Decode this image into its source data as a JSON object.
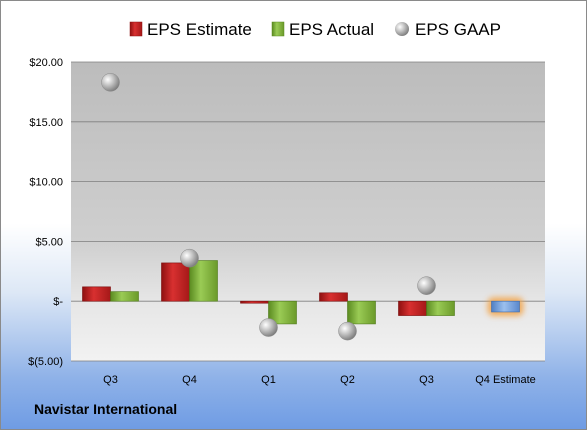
{
  "footer": {
    "company": "Navistar International"
  },
  "colors": {
    "estimate": "#d42a2a",
    "actual": "#7fb23a",
    "gaap": "#b8b8b8",
    "future_estimate": "#6f9bd8",
    "future_glow": "#f3a44a"
  },
  "chart_data": {
    "type": "bar",
    "categories": [
      "Q3",
      "Q4",
      "Q1",
      "Q2",
      "Q3",
      "Q4 Estimate"
    ],
    "series": [
      {
        "name": "EPS Estimate",
        "values": [
          1.2,
          3.2,
          -0.1,
          0.7,
          -1.2,
          -0.9
        ]
      },
      {
        "name": "EPS Actual",
        "values": [
          0.8,
          3.4,
          -1.9,
          -1.9,
          -1.2,
          null
        ]
      },
      {
        "name": "EPS GAAP",
        "values": [
          18.3,
          3.6,
          -2.2,
          -2.5,
          1.3,
          null
        ]
      }
    ],
    "y_tick_labels": [
      "$(5.00)",
      "$-",
      "$5.00",
      "$10.00",
      "$15.00",
      "$20.00"
    ],
    "y_tick_values": [
      -5,
      0,
      5,
      10,
      15,
      20
    ],
    "ylim": [
      -5,
      20
    ],
    "legend_position": "top",
    "grid": true
  }
}
